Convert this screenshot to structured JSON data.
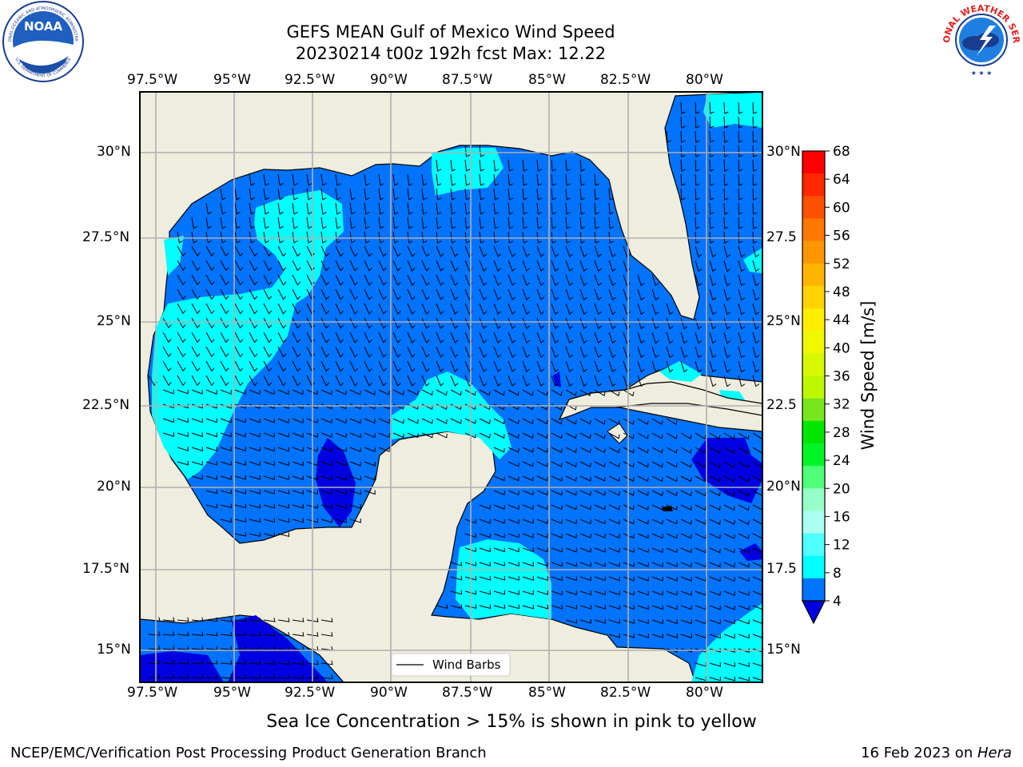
{
  "title": {
    "line1": "GEFS MEAN Gulf of Mexico Wind Speed",
    "line2": "20230214 t00z 192h fcst   Max: 12.22"
  },
  "logos": {
    "noaa": {
      "text": "NOAA",
      "ring_text": "NATIONAL OCEANIC AND ATMOSPHERIC ADMINISTRATION",
      "ring_bottom": "U.S. DEPARTMENT OF COMMERCE"
    },
    "nws": {
      "ring_text": "NATIONAL WEATHER SERVICE"
    }
  },
  "map": {
    "lon_labels": [
      "97.5°W",
      "95°W",
      "92.5°W",
      "90°W",
      "87.5°W",
      "85°W",
      "82.5°W",
      "80°W"
    ],
    "lat_labels_left": [
      "30°N",
      "27.5°N",
      "25°N",
      "22.5°N",
      "20°N",
      "17.5°N",
      "15°N"
    ],
    "lat_labels_right": [
      "30°N",
      "27.5",
      "25°N",
      "22.5",
      "20°N",
      "17.5",
      "15°N"
    ],
    "legend_label": "Wind Barbs",
    "colors": {
      "land": "#efedde",
      "water_low": "#0073ff",
      "water_mid": "#00ffff",
      "water_calm": "#0000e0",
      "grid": "#b0b0b0"
    }
  },
  "colorbar": {
    "label": "Wind Speed [m/s]",
    "ticks": [
      "68",
      "64",
      "60",
      "56",
      "52",
      "48",
      "44",
      "40",
      "36",
      "32",
      "28",
      "24",
      "20",
      "16",
      "12",
      "8",
      "4"
    ],
    "colors_top_to_bottom": [
      "#ff0000",
      "#ff2800",
      "#ff5000",
      "#ff7800",
      "#ff9600",
      "#ffb400",
      "#ffd200",
      "#ffee00",
      "#f0f800",
      "#d7f800",
      "#bef800",
      "#78e61e",
      "#00e600",
      "#00f528",
      "#50ff78",
      "#96ffc8",
      "#aafff0",
      "#50ffff",
      "#00ffff",
      "#0073ff"
    ],
    "under_color": "#0000e0"
  },
  "notes": {
    "sea_ice": "Sea Ice Concentration > 15% is shown in pink to yellow",
    "credit": "NCEP/EMC/Verification Post Processing Product Generation Branch",
    "date": "16 Feb 2023 on ",
    "machine": "Hera"
  }
}
